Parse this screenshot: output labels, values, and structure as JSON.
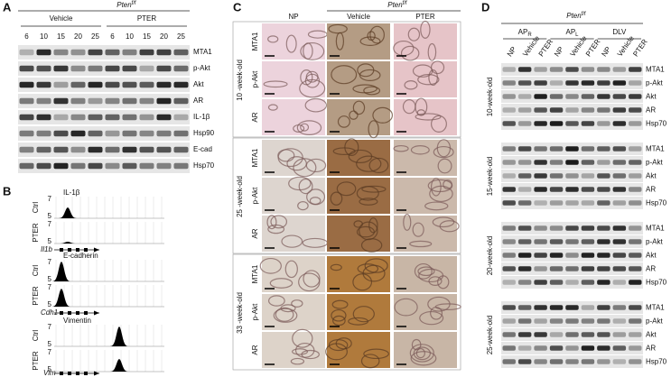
{
  "A": {
    "label": "A",
    "genotype": {
      "gene": "Pten",
      "allele": "f/f"
    },
    "groups": [
      "Vehicle",
      "PTER"
    ],
    "lanes": [
      "6",
      "10",
      "15",
      "20",
      "25",
      "6",
      "10",
      "15",
      "20",
      "25"
    ],
    "blots": [
      "MTA1",
      "p-Akt",
      "Akt",
      "AR",
      "IL-1β",
      "Hsp90",
      "E-cad",
      "Hsp70"
    ]
  },
  "B": {
    "label": "B",
    "tracks": [
      {
        "title": "IL-1β",
        "gene": "Il1b",
        "rows": [
          {
            "name": "Ctrl",
            "max": "7",
            "min": "5"
          },
          {
            "name": "PTER",
            "max": "7",
            "min": "5"
          }
        ]
      },
      {
        "title": "E-cadherin",
        "gene": "Cdh1",
        "rows": [
          {
            "name": "Ctrl",
            "max": "7",
            "min": "5"
          },
          {
            "name": "PTER",
            "max": "7",
            "min": "5"
          }
        ]
      },
      {
        "title": "Vimentin",
        "gene": "Vim",
        "rows": [
          {
            "name": "Ctrl",
            "max": "7",
            "min": "5"
          },
          {
            "name": "PTER",
            "max": "7",
            "min": "5"
          }
        ]
      }
    ]
  },
  "C": {
    "label": "C",
    "genotype": {
      "gene": "Pten",
      "allele": "f/f"
    },
    "columns": [
      "NP",
      "Vehicle",
      "PTER"
    ],
    "groups": [
      {
        "age": "10 -week-old",
        "rows": [
          "MTA1",
          "p-Akt",
          "AR"
        ]
      },
      {
        "age": "25 -week-old",
        "rows": [
          "MTA1",
          "p-Akt",
          "AR"
        ]
      },
      {
        "age": "33 -week-old",
        "rows": [
          "MTA1",
          "p-Akt",
          "AR"
        ]
      }
    ]
  },
  "D": {
    "label": "D",
    "genotype": {
      "gene": "Pten",
      "allele": "f/f"
    },
    "groups": [
      {
        "text": "AP",
        "sub": "R"
      },
      {
        "text": "AP",
        "sub": "L"
      },
      {
        "text": "DLV"
      }
    ],
    "lanes": [
      "NP",
      "Vehicle",
      "PTER",
      "NP",
      "Vehicle",
      "PTER",
      "NP",
      "Vehicle",
      "PTER"
    ],
    "ages": [
      {
        "age": "10-week-old",
        "blots": [
          "MTA1",
          "p-Akt",
          "Akt",
          "AR",
          "Hsp70"
        ]
      },
      {
        "age": "15-week-old",
        "blots": [
          "MTA1",
          "p-Akt",
          "Akt",
          "AR",
          "Hsp70"
        ]
      },
      {
        "age": "20-week-old",
        "blots": [
          "MTA1",
          "p-Akt",
          "Akt",
          "AR",
          "Hsp70"
        ]
      },
      {
        "age": "25-week-old",
        "blots": [
          "MTA1",
          "p-Akt",
          "Akt",
          "AR",
          "Hsp70"
        ]
      }
    ]
  }
}
